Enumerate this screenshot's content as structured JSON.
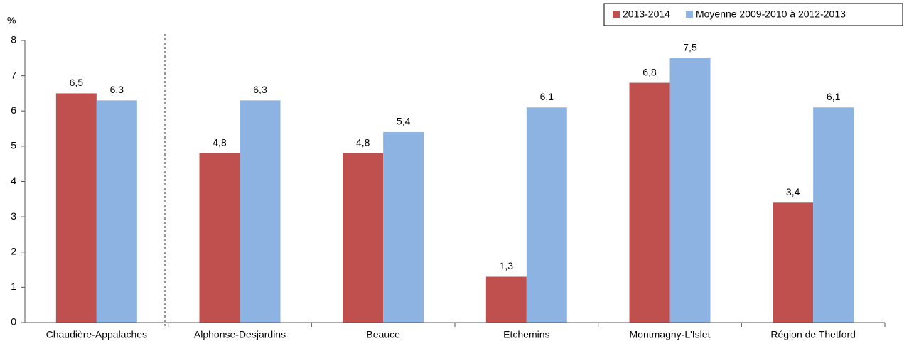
{
  "chart_data": {
    "type": "bar",
    "y_label": "%",
    "categories": [
      "Chaudière-Appalaches",
      "Alphonse-Desjardins",
      "Beauce",
      "Etchemins",
      "Montmagny-L'Islet",
      "Région de Thetford"
    ],
    "series": [
      {
        "name": "2013-2014",
        "color": "#c0504d",
        "values": [
          6.5,
          4.8,
          4.8,
          1.3,
          6.8,
          3.4
        ],
        "value_labels": [
          "6,5",
          "4,8",
          "4,8",
          "1,3",
          "6,8",
          "3,4"
        ]
      },
      {
        "name": "Moyenne 2009-2010 à 2012-2013",
        "color": "#8db3e2",
        "values": [
          6.3,
          6.3,
          5.4,
          6.1,
          7.5,
          6.1
        ],
        "value_labels": [
          "6,3",
          "6,3",
          "5,4",
          "6,1",
          "7,5",
          "6,1"
        ]
      }
    ],
    "ylim": [
      0,
      8
    ],
    "yticks": [
      0,
      1,
      2,
      3,
      4,
      5,
      6,
      7,
      8
    ],
    "grid": false,
    "legend": "top-right"
  }
}
